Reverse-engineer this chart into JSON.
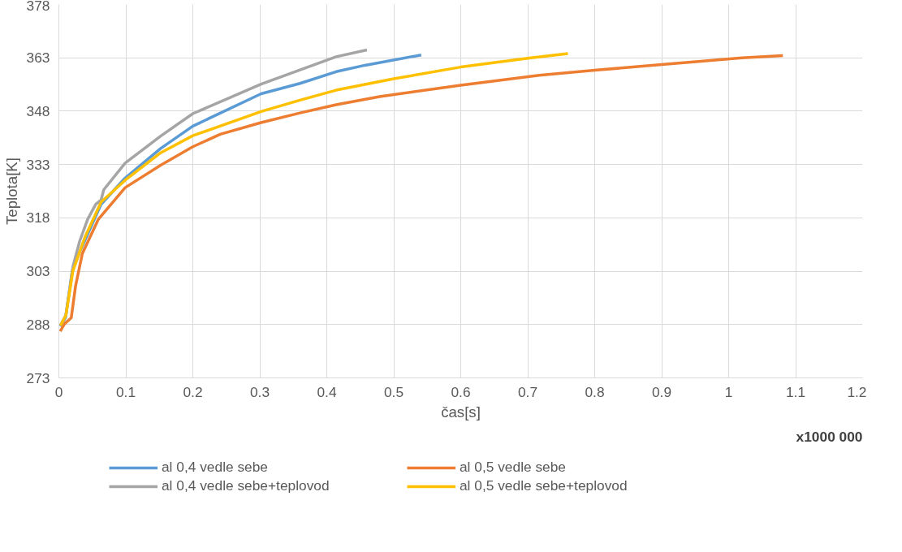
{
  "chart_data": {
    "type": "line",
    "xlabel": "čas[s]",
    "ylabel": "Teplota[K]",
    "annotations": [
      "x1000 000"
    ],
    "xlim": [
      0,
      1.2
    ],
    "xticks": [
      0,
      0.1,
      0.2,
      0.3,
      0.4,
      0.5,
      0.6,
      0.7,
      0.8,
      0.9,
      1,
      1.1,
      1.2
    ],
    "ylim": [
      273,
      378
    ],
    "yticks": [
      273,
      288,
      303,
      318,
      333,
      348,
      363,
      378
    ],
    "grid": true,
    "legend": "bottom",
    "marker": "none",
    "line_style": "solid",
    "series": [
      {
        "name": "al 0,4 vedle sebe",
        "color": "#5b9bd5",
        "x": [
          0.002,
          0.01,
          0.02,
          0.03,
          0.063,
          0.099,
          0.152,
          0.2,
          0.302,
          0.36,
          0.414,
          0.457,
          0.541
        ],
        "values": [
          287.5,
          290,
          303,
          307.9,
          321.8,
          329.2,
          337.5,
          343.8,
          352.9,
          355.8,
          359.1,
          360.9,
          363.8
        ]
      },
      {
        "name": "al 0,5 vedle sebe",
        "color": "#ed7d31",
        "x": [
          0.002,
          0.0085,
          0.0185,
          0.025,
          0.035,
          0.059,
          0.099,
          0.152,
          0.2,
          0.241,
          0.302,
          0.36,
          0.414,
          0.479,
          0.6,
          0.717,
          0.8,
          0.9,
          1.02,
          1.081
        ],
        "values": [
          286.1,
          288.2,
          289.9,
          298.9,
          307.9,
          317.6,
          326.5,
          332.8,
          338,
          341.5,
          344.8,
          347.5,
          349.8,
          352.1,
          355.3,
          358.1,
          359.5,
          361.1,
          363,
          363.6
        ]
      },
      {
        "name": "al 0,4 vedle sebe+teplovod",
        "color": "#a5a5a5",
        "x": [
          0.0024,
          0.0105,
          0.021,
          0.031,
          0.043,
          0.055,
          0.063,
          0.067,
          0.099,
          0.152,
          0.2,
          0.302,
          0.414,
          0.46
        ],
        "values": [
          287.8,
          290.6,
          304.3,
          311.4,
          317.6,
          321.8,
          323,
          325.9,
          333.4,
          341,
          347.3,
          355.6,
          363.3,
          365.2
        ]
      },
      {
        "name": "al 0,5 vedle sebe+teplovod",
        "color": "#ffc000",
        "x": [
          0.0024,
          0.0105,
          0.021,
          0.039,
          0.063,
          0.099,
          0.152,
          0.2,
          0.302,
          0.36,
          0.414,
          0.5,
          0.6,
          0.7,
          0.76
        ],
        "values": [
          287.7,
          290.6,
          303.1,
          312.6,
          322.4,
          328.6,
          336.3,
          341.1,
          347.9,
          351.1,
          353.9,
          357.1,
          360.4,
          362.9,
          364.2
        ]
      }
    ]
  }
}
